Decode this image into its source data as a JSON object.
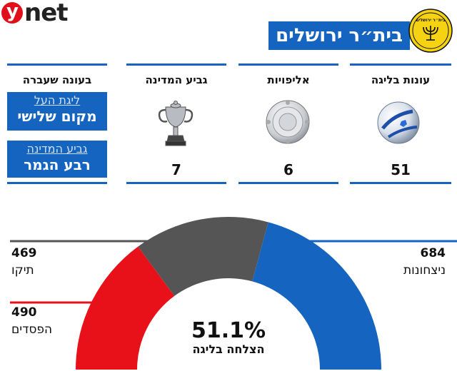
{
  "brand": "ynet",
  "team_name": "בית״ר ירושלים",
  "crest": {
    "text": "בית״ר ירושלים"
  },
  "stats": [
    {
      "title": "עונות בליגה",
      "value": "51",
      "icon": "soccer-ball-icon"
    },
    {
      "title": "אליפויות",
      "value": "6",
      "icon": "league-shield-trophy-icon"
    },
    {
      "title": "גביע המדינה",
      "value": "7",
      "icon": "state-cup-trophy-icon"
    }
  ],
  "last_season": {
    "title": "בעונה שעברה",
    "items": [
      {
        "sub": "ליגת העל",
        "main": "מקום שלישי"
      },
      {
        "sub": "גביע המדינה",
        "main": "רבע הגמר"
      }
    ]
  },
  "colors": {
    "blue": "#1565c0",
    "gray": "#555555",
    "red": "#e8111a"
  },
  "chart_data": {
    "type": "pie",
    "subtype": "half-donut",
    "series": [
      {
        "name": "ניצחונות",
        "value": 684,
        "color": "#1565c0"
      },
      {
        "name": "תיקו",
        "value": 469,
        "color": "#555555"
      },
      {
        "name": "הפסדים",
        "value": 490,
        "color": "#e8111a"
      }
    ],
    "center_value": "51.1%",
    "center_label": "הצלחה בליגה"
  }
}
